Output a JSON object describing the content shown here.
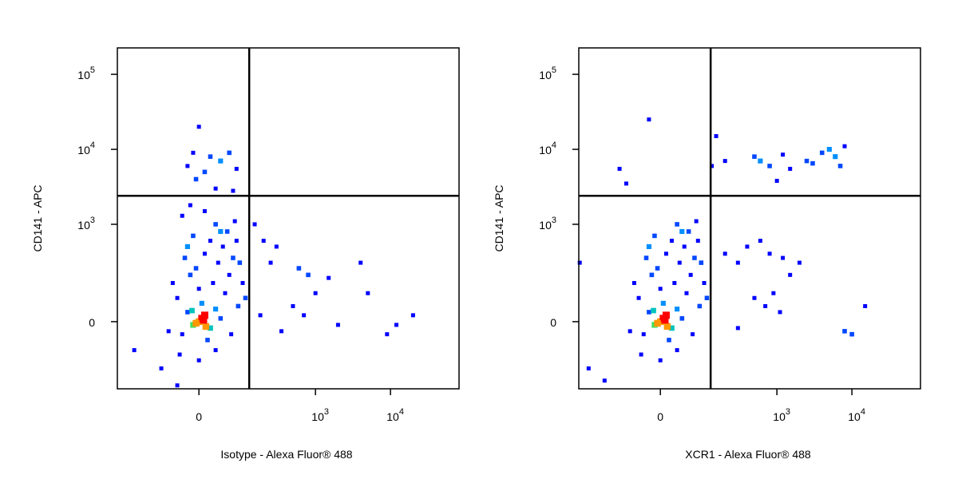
{
  "chart_data": [
    {
      "type": "scatter",
      "xlabel": "Isotype - Alexa Fluor® 488",
      "ylabel": "CD141 - APC",
      "xlim": [
        -340,
        82000
      ],
      "ylim": [
        -390,
        225000
      ],
      "xticks": [
        0,
        {
          "value": 1000,
          "label": "10",
          "exponent": "3"
        },
        {
          "value": 10000,
          "label": "10",
          "exponent": "4"
        }
      ],
      "yticks": [
        0,
        {
          "value": 1000,
          "label": "10",
          "exponent": "3"
        },
        {
          "value": 10000,
          "label": "10",
          "exponent": "4"
        },
        {
          "value": 100000,
          "label": "10",
          "exponent": "5"
        }
      ],
      "gate_x": 125,
      "gate_y": 2400,
      "x": [
        0,
        10,
        -10,
        20,
        -20,
        5,
        30,
        -30,
        15,
        40,
        -40,
        0,
        25,
        -15,
        50,
        -5,
        35,
        60,
        10,
        -25,
        45,
        70,
        20,
        -10,
        55,
        80,
        30,
        90,
        100,
        -50,
        -35,
        0,
        30,
        -60,
        65,
        85,
        110,
        -20,
        40,
        75,
        0,
        -10,
        20,
        40,
        -20,
        60,
        10,
        80,
        -5,
        30,
        70,
        -15,
        10,
        -30,
        200,
        300,
        250,
        600,
        800,
        1000,
        1500,
        500,
        700,
        2000,
        4000,
        5000,
        12000,
        20000,
        9000,
        350,
        180,
        150,
        -80,
        -200,
        -40,
        5,
        -5,
        12,
        -12,
        8
      ],
      "y": [
        0,
        20,
        -10,
        -20,
        30,
        60,
        40,
        -40,
        -60,
        10,
        80,
        120,
        150,
        200,
        100,
        250,
        300,
        200,
        400,
        350,
        500,
        350,
        600,
        700,
        800,
        600,
        1000,
        300,
        150,
        150,
        -120,
        -150,
        -100,
        -30,
        -40,
        50,
        80,
        500,
        800,
        1100,
        20000,
        9000,
        8000,
        7000,
        6000,
        9000,
        5000,
        5500,
        4000,
        3000,
        2800,
        1800,
        1500,
        1300,
        600,
        500,
        300,
        250,
        200,
        100,
        180,
        50,
        20,
        -10,
        300,
        100,
        -10,
        20,
        -40,
        -30,
        20,
        1000,
        -200,
        -100,
        -350,
        10,
        -5,
        -15,
        35,
        5
      ]
    },
    {
      "type": "scatter",
      "xlabel": "XCR1 - Alexa Fluor® 488",
      "ylabel": "CD141 - APC",
      "xlim": [
        -340,
        82000
      ],
      "ylim": [
        -390,
        225000
      ],
      "xticks": [
        0,
        {
          "value": 1000,
          "label": "10",
          "exponent": "3"
        },
        {
          "value": 10000,
          "label": "10",
          "exponent": "4"
        }
      ],
      "yticks": [
        0,
        {
          "value": 1000,
          "label": "10",
          "exponent": "3"
        },
        {
          "value": 10000,
          "label": "10",
          "exponent": "4"
        },
        {
          "value": 100000,
          "label": "10",
          "exponent": "5"
        }
      ],
      "gate_x": 125,
      "gate_y": 2400,
      "x": [
        0,
        10,
        -10,
        20,
        -20,
        5,
        30,
        -30,
        15,
        40,
        -40,
        0,
        25,
        -15,
        50,
        -5,
        35,
        60,
        10,
        -25,
        45,
        70,
        20,
        -10,
        55,
        80,
        30,
        90,
        100,
        -50,
        -35,
        0,
        30,
        -60,
        65,
        85,
        110,
        -20,
        40,
        75,
        500,
        600,
        800,
        1200,
        1500,
        2500,
        3000,
        4000,
        5000,
        6000,
        7000,
        8000,
        150,
        200,
        130,
        -20,
        -90,
        -70,
        1000,
        200,
        300,
        400,
        600,
        800,
        1200,
        1500,
        2000,
        900,
        500,
        700,
        1100,
        300,
        15000,
        8000,
        10000,
        -330,
        -250,
        -150,
        5,
        -5,
        12,
        -12,
        8
      ],
      "y": [
        0,
        20,
        -10,
        -20,
        30,
        60,
        40,
        -40,
        -60,
        10,
        80,
        120,
        150,
        200,
        100,
        250,
        300,
        200,
        400,
        350,
        500,
        350,
        600,
        700,
        800,
        600,
        1000,
        300,
        150,
        150,
        -120,
        -150,
        -100,
        -30,
        -40,
        50,
        80,
        500,
        800,
        1100,
        8000,
        7000,
        6000,
        8500,
        5500,
        7000,
        6500,
        9000,
        10000,
        8000,
        6000,
        11000,
        15000,
        7000,
        6000,
        25000,
        5500,
        3500,
        3800,
        400,
        300,
        500,
        600,
        400,
        350,
        200,
        300,
        100,
        80,
        50,
        30,
        -20,
        50,
        -30,
        -40,
        300,
        -200,
        -300,
        10,
        -5,
        -15,
        35,
        5
      ]
    }
  ]
}
